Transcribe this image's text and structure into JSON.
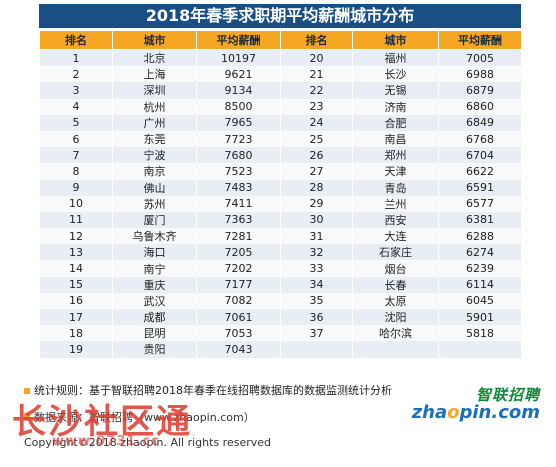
{
  "title": "2018年春季求职期平均薪酬城市分布",
  "headers": [
    "排名",
    "城市",
    "平均薪酬",
    "排名",
    "城市",
    "平均薪酬"
  ],
  "rows": [
    [
      "1",
      "北京",
      "10197",
      "20",
      "福州",
      "7005"
    ],
    [
      "2",
      "上海",
      "9621",
      "21",
      "长沙",
      "6988"
    ],
    [
      "3",
      "深圳",
      "9134",
      "22",
      "无锡",
      "6879"
    ],
    [
      "4",
      "杭州",
      "8500",
      "23",
      "济南",
      "6860"
    ],
    [
      "5",
      "广州",
      "7965",
      "24",
      "合肥",
      "6849"
    ],
    [
      "6",
      "东莞",
      "7723",
      "25",
      "南昌",
      "6768"
    ],
    [
      "7",
      "宁波",
      "7680",
      "26",
      "郑州",
      "6704"
    ],
    [
      "8",
      "南京",
      "7523",
      "27",
      "天津",
      "6622"
    ],
    [
      "9",
      "佛山",
      "7483",
      "28",
      "青岛",
      "6591"
    ],
    [
      "10",
      "苏州",
      "7411",
      "29",
      "兰州",
      "6577"
    ],
    [
      "11",
      "厦门",
      "7363",
      "30",
      "西安",
      "6381"
    ],
    [
      "12",
      "乌鲁木齐",
      "7281",
      "31",
      "大连",
      "6288"
    ],
    [
      "13",
      "海口",
      "7205",
      "32",
      "石家庄",
      "6274"
    ],
    [
      "14",
      "南宁",
      "7202",
      "33",
      "烟台",
      "6239"
    ],
    [
      "15",
      "重庆",
      "7177",
      "34",
      "长春",
      "6114"
    ],
    [
      "16",
      "武汉",
      "7082",
      "35",
      "太原",
      "6045"
    ],
    [
      "17",
      "成都",
      "7061",
      "36",
      "沈阳",
      "5901"
    ],
    [
      "18",
      "昆明",
      "7053",
      "37",
      "哈尔滨",
      "5818"
    ],
    [
      "19",
      "贵阳",
      "7043",
      "",
      "",
      ""
    ]
  ],
  "footer": {
    "note": "统计规则：基于智联招聘2018年春季在线招聘数据库的数据监测统计分析",
    "source": "数据来源：智联招聘（www.zhaopin.com）",
    "copyright": "Copyright©2018 zhaopin. All rights reserved"
  },
  "logo": {
    "cn": "智联招聘",
    "en_left": "zha",
    "en_o": "o",
    "en_right": "pin.com"
  },
  "watermark": {
    "text": "长沙社区通",
    "url": "www.0731.cc"
  },
  "colors": {
    "title_bg": "#1a4f86",
    "header_bg": "#f5a623",
    "row_even": "#e9eef4",
    "row_odd": "#f7f9fb",
    "watermark": "#e0382c"
  }
}
